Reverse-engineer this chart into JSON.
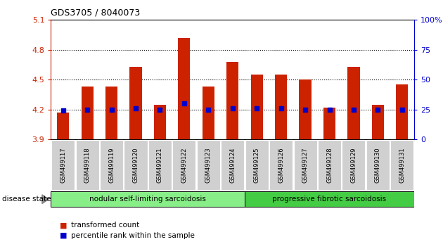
{
  "title": "GDS3705 / 8040073",
  "samples": [
    "GSM499117",
    "GSM499118",
    "GSM499119",
    "GSM499120",
    "GSM499121",
    "GSM499122",
    "GSM499123",
    "GSM499124",
    "GSM499125",
    "GSM499126",
    "GSM499127",
    "GSM499128",
    "GSM499129",
    "GSM499130",
    "GSM499131"
  ],
  "bar_values": [
    4.17,
    4.43,
    4.43,
    4.63,
    4.25,
    4.92,
    4.43,
    4.68,
    4.55,
    4.55,
    4.5,
    4.22,
    4.63,
    4.25,
    4.45
  ],
  "dot_values": [
    4.19,
    4.2,
    4.2,
    4.21,
    4.2,
    4.26,
    4.2,
    4.21,
    4.21,
    4.21,
    4.2,
    4.2,
    4.2,
    4.2,
    4.2
  ],
  "bar_color": "#cc2200",
  "dot_color": "#0000cc",
  "ymin": 3.9,
  "ymax": 5.1,
  "yticks_left": [
    3.9,
    4.2,
    4.5,
    4.8,
    5.1
  ],
  "ytick_right_labels": [
    "0",
    "25",
    "50",
    "75",
    "100%"
  ],
  "right_tick_positions": [
    3.9,
    4.2,
    4.5,
    4.8,
    5.1
  ],
  "group1_label": "nodular self-limiting sarcoidosis",
  "group2_label": "progressive fibrotic sarcoidosis",
  "group1_count": 8,
  "group1_color": "#88ee88",
  "group2_color": "#44cc44",
  "disease_state_label": "disease state",
  "legend_bar_label": "transformed count",
  "legend_dot_label": "percentile rank within the sample",
  "axis_color": "#cc2200",
  "right_axis_color": "#0000cc",
  "sample_box_color": "#d0d0d0",
  "dotted_line_color": "#000000"
}
